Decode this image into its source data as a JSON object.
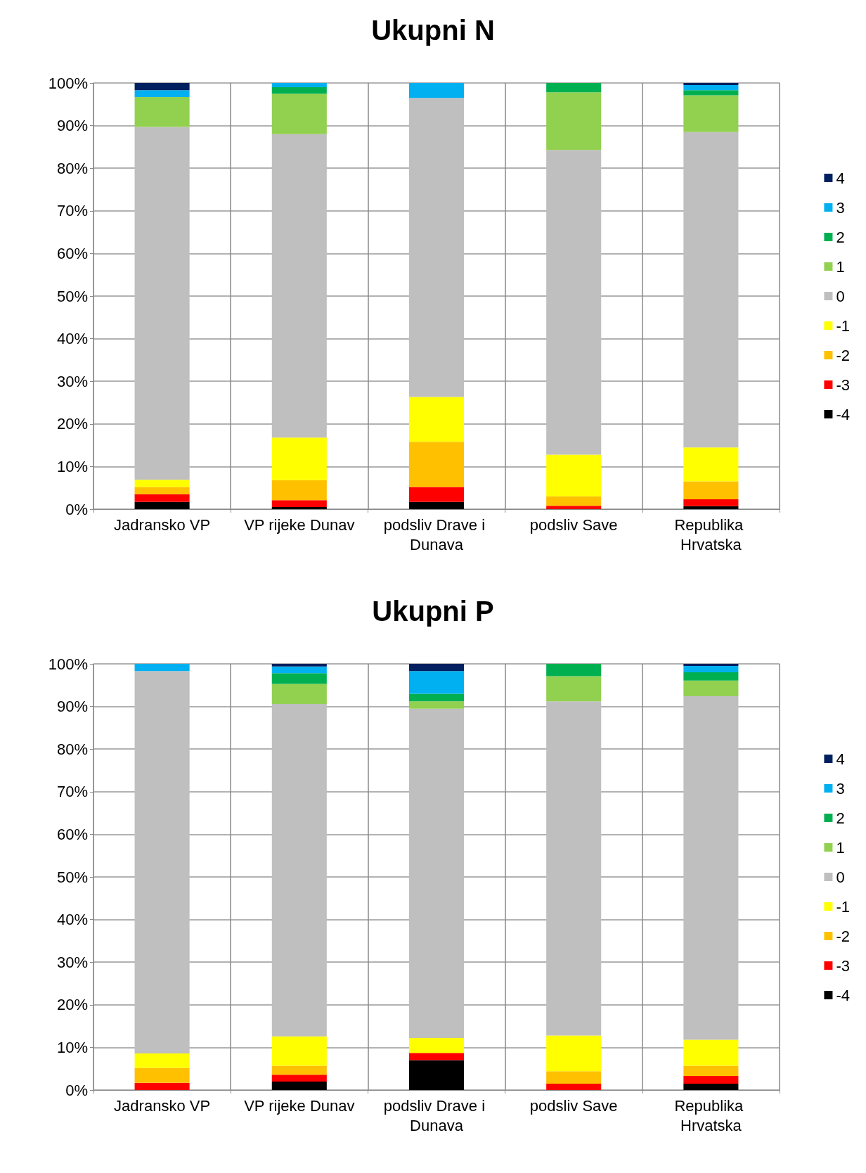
{
  "chart_data": [
    {
      "type": "bar",
      "title": "Ukupni N",
      "stacked": true,
      "grid": true,
      "legend": "right",
      "categories": [
        "Jadransko VP",
        "VP rijeke Dunav",
        "podsliv Drave i Dunava",
        "podsliv Save",
        "Republika Hrvatska"
      ],
      "ylim": [
        0,
        100
      ],
      "yticks": [
        {
          "value": 0,
          "label": "0%"
        },
        {
          "value": 10,
          "label": "10%"
        },
        {
          "value": 20,
          "label": "20%"
        },
        {
          "value": 30,
          "label": "30%"
        },
        {
          "value": 40,
          "label": "40%"
        },
        {
          "value": 50,
          "label": "50%"
        },
        {
          "value": 60,
          "label": "60%"
        },
        {
          "value": 70,
          "label": "70%"
        },
        {
          "value": 80,
          "label": "80%"
        },
        {
          "value": 90,
          "label": "90%"
        },
        {
          "value": 100,
          "label": "100%"
        }
      ],
      "series": [
        {
          "name": "-4",
          "color": "#000000",
          "values": [
            1.7,
            0.5,
            1.7,
            0,
            0.7
          ]
        },
        {
          "name": "-3",
          "color": "#ff0000",
          "values": [
            1.8,
            1.6,
            3.5,
            0.8,
            1.6
          ]
        },
        {
          "name": "-2",
          "color": "#ffc000",
          "values": [
            1.7,
            4.7,
            10.6,
            2.2,
            4.2
          ]
        },
        {
          "name": "-1",
          "color": "#ffff00",
          "values": [
            1.7,
            10,
            10.5,
            9.8,
            8
          ]
        },
        {
          "name": "0",
          "color": "#bfbfbf",
          "values": [
            82.8,
            71.2,
            70.2,
            71.5,
            74
          ]
        },
        {
          "name": "1",
          "color": "#92d050",
          "values": [
            7,
            9.5,
            0,
            13.5,
            8.6
          ]
        },
        {
          "name": "2",
          "color": "#00b050",
          "values": [
            0,
            1.5,
            0,
            2.2,
            1.2
          ]
        },
        {
          "name": "3",
          "color": "#00b0f0",
          "values": [
            1.6,
            1,
            3.5,
            0,
            1.2
          ]
        },
        {
          "name": "4",
          "color": "#002060",
          "values": [
            1.7,
            0,
            0,
            0,
            0.5
          ]
        }
      ]
    },
    {
      "type": "bar",
      "title": "Ukupni P",
      "stacked": true,
      "grid": true,
      "legend": "right",
      "categories": [
        "Jadransko VP",
        "VP rijeke Dunav",
        "podsliv Drave i Dunava",
        "podsliv Save",
        "Republika Hrvatska"
      ],
      "ylim": [
        0,
        100
      ],
      "yticks": [
        {
          "value": 0,
          "label": "0%"
        },
        {
          "value": 10,
          "label": "10%"
        },
        {
          "value": 20,
          "label": "20%"
        },
        {
          "value": 30,
          "label": "30%"
        },
        {
          "value": 40,
          "label": "40%"
        },
        {
          "value": 50,
          "label": "50%"
        },
        {
          "value": 60,
          "label": "60%"
        },
        {
          "value": 70,
          "label": "70%"
        },
        {
          "value": 80,
          "label": "80%"
        },
        {
          "value": 90,
          "label": "90%"
        },
        {
          "value": 100,
          "label": "100%"
        }
      ],
      "series": [
        {
          "name": "-4",
          "color": "#000000",
          "values": [
            0,
            2,
            7,
            0,
            1.5
          ]
        },
        {
          "name": "-3",
          "color": "#ff0000",
          "values": [
            1.7,
            1.6,
            1.7,
            1.5,
            1.8
          ]
        },
        {
          "name": "-2",
          "color": "#ffc000",
          "values": [
            3.5,
            2.1,
            0,
            2.9,
            2.4
          ]
        },
        {
          "name": "-1",
          "color": "#ffff00",
          "values": [
            3.4,
            6.9,
            3.5,
            8.4,
            6.1
          ]
        },
        {
          "name": "0",
          "color": "#bfbfbf",
          "values": [
            89.7,
            78,
            77.3,
            78.4,
            80.6
          ]
        },
        {
          "name": "1",
          "color": "#92d050",
          "values": [
            0,
            4.7,
            1.7,
            5.9,
            3.7
          ]
        },
        {
          "name": "2",
          "color": "#00b050",
          "values": [
            0,
            2.5,
            1.8,
            2.9,
            1.9
          ]
        },
        {
          "name": "3",
          "color": "#00b0f0",
          "values": [
            1.7,
            1.6,
            5.3,
            0,
            1.5
          ]
        },
        {
          "name": "4",
          "color": "#002060",
          "values": [
            0,
            0.6,
            1.7,
            0,
            0.5
          ]
        }
      ]
    }
  ]
}
